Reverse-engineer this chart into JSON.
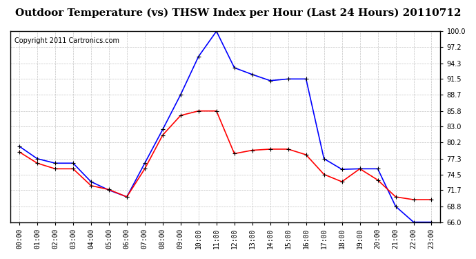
{
  "title": "Outdoor Temperature (vs) THSW Index per Hour (Last 24 Hours) 20110712",
  "copyright": "Copyright 2011 Cartronics.com",
  "hours": [
    "00:00",
    "01:00",
    "02:00",
    "03:00",
    "04:00",
    "05:00",
    "06:00",
    "07:00",
    "08:00",
    "09:00",
    "10:00",
    "11:00",
    "12:00",
    "13:00",
    "14:00",
    "15:00",
    "16:00",
    "17:00",
    "18:00",
    "19:00",
    "20:00",
    "21:00",
    "22:00",
    "23:00"
  ],
  "temp_blue": [
    79.5,
    77.3,
    76.5,
    76.5,
    73.2,
    71.7,
    70.5,
    76.5,
    82.5,
    88.7,
    95.5,
    100.0,
    93.5,
    92.3,
    91.2,
    91.5,
    91.5,
    77.3,
    75.4,
    75.5,
    75.5,
    68.8,
    66.0,
    66.0
  ],
  "temp_red": [
    78.5,
    76.5,
    75.5,
    75.5,
    72.5,
    71.8,
    70.5,
    75.5,
    81.5,
    85.0,
    85.8,
    85.8,
    78.2,
    78.8,
    79.0,
    79.0,
    78.0,
    74.5,
    73.2,
    75.5,
    73.5,
    70.5,
    70.0,
    70.0
  ],
  "ylim_min": 66.0,
  "ylim_max": 100.0,
  "yticks": [
    66.0,
    68.8,
    71.7,
    74.5,
    77.3,
    80.2,
    83.0,
    85.8,
    88.7,
    91.5,
    94.3,
    97.2,
    100.0
  ],
  "blue_color": "#0000FF",
  "red_color": "#FF0000",
  "bg_color": "#FFFFFF",
  "grid_color": "#AAAAAA",
  "title_fontsize": 11,
  "copyright_fontsize": 7
}
